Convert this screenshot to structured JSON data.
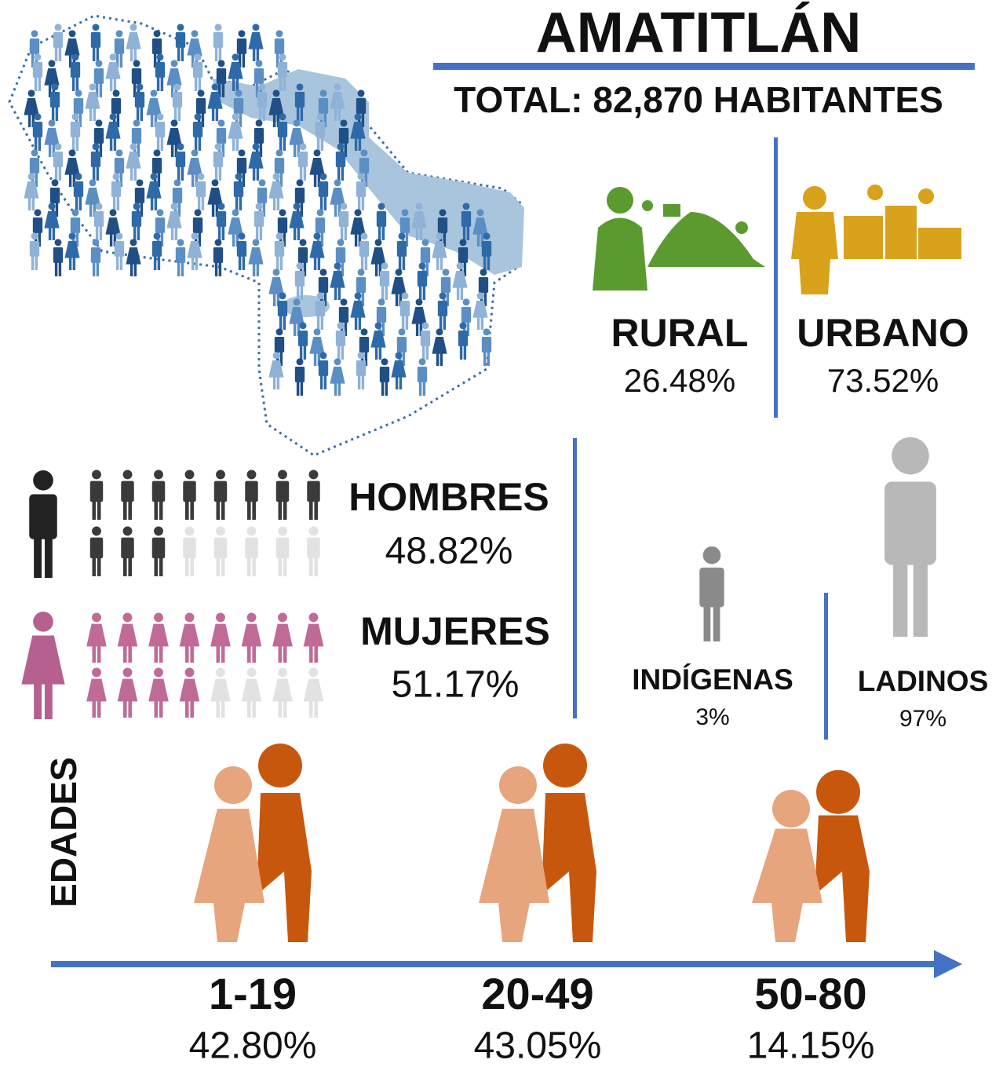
{
  "title": "AMATITLÁN",
  "total": "TOTAL: 82,870 HABITANTES",
  "area": [
    {
      "label": "RURAL",
      "value": "26.48%"
    },
    {
      "label": "URBANO",
      "value": "73.52%"
    }
  ],
  "sex": [
    {
      "label": "HOMBRES",
      "value": "48.82%"
    },
    {
      "label": "MUJERES",
      "value": "51.17%"
    }
  ],
  "ethnicity": [
    {
      "label": "INDÍGENAS",
      "value": "3%"
    },
    {
      "label": "LADINOS",
      "value": "97%"
    }
  ],
  "ages": {
    "label": "EDADES",
    "groups": [
      {
        "range": "1-19",
        "value": "42.80%"
      },
      {
        "range": "20-49",
        "value": "43.05%"
      },
      {
        "range": "50-80",
        "value": "14.15%"
      }
    ]
  }
}
